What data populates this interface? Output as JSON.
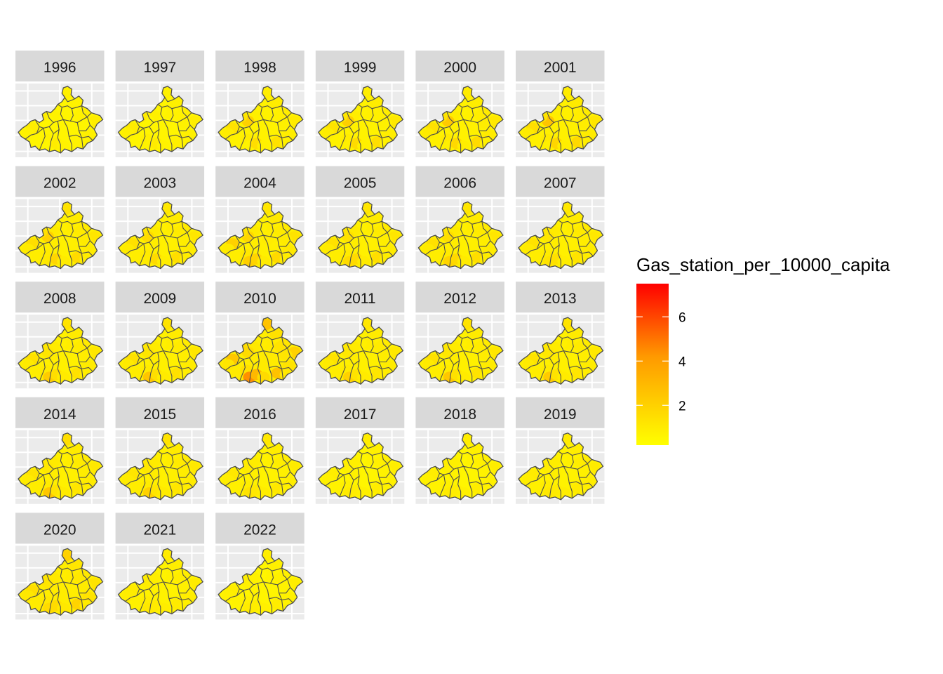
{
  "chart_data": {
    "type": "heatmap",
    "subtype": "faceted-choropleth",
    "facet_labels": [
      "1996",
      "1997",
      "1998",
      "1999",
      "2000",
      "2001",
      "2002",
      "2003",
      "2004",
      "2005",
      "2006",
      "2007",
      "2008",
      "2009",
      "2010",
      "2011",
      "2012",
      "2013",
      "2014",
      "2015",
      "2016",
      "2017",
      "2018",
      "2019",
      "2020",
      "2021",
      "2022"
    ],
    "facet_columns": 6,
    "region_count": 25,
    "facet_values": [
      [
        0.8,
        0.7,
        0.6,
        0.6,
        0.7,
        0.8,
        0.9,
        0.7,
        0.6,
        0.9,
        0.9,
        0.7,
        0.6,
        0.7,
        0.6,
        0.6,
        0.9,
        0.6,
        0.7,
        0.6,
        0.7,
        0.6,
        0.8,
        0.7,
        0.6
      ],
      [
        0.8,
        0.8,
        0.7,
        0.6,
        0.8,
        0.8,
        0.9,
        0.7,
        0.6,
        1.0,
        1.0,
        0.8,
        0.6,
        0.8,
        0.6,
        0.7,
        1.0,
        0.6,
        0.7,
        0.6,
        0.8,
        0.7,
        0.8,
        0.7,
        0.6
      ],
      [
        0.9,
        0.9,
        0.7,
        0.7,
        0.8,
        0.9,
        1.0,
        0.8,
        2.0,
        1.2,
        1.3,
        0.9,
        0.7,
        0.9,
        0.7,
        0.7,
        1.5,
        0.7,
        0.8,
        0.7,
        1.4,
        0.8,
        0.9,
        0.8,
        0.7
      ],
      [
        0.9,
        0.9,
        0.8,
        0.7,
        0.9,
        0.9,
        1.1,
        0.8,
        2.1,
        1.2,
        1.3,
        0.9,
        0.7,
        0.9,
        0.8,
        0.8,
        1.6,
        0.7,
        0.8,
        0.7,
        1.5,
        0.8,
        0.9,
        0.8,
        0.7
      ],
      [
        1.0,
        0.9,
        0.8,
        0.7,
        0.9,
        1.0,
        1.1,
        0.9,
        2.3,
        1.3,
        1.4,
        1.0,
        0.8,
        1.0,
        0.8,
        0.8,
        1.7,
        0.7,
        0.9,
        0.8,
        1.6,
        0.9,
        1.0,
        0.8,
        0.8
      ],
      [
        1.0,
        1.0,
        0.8,
        0.8,
        0.9,
        1.0,
        1.2,
        0.9,
        2.5,
        1.3,
        1.5,
        1.0,
        0.8,
        1.0,
        0.8,
        0.8,
        1.8,
        0.8,
        0.9,
        0.8,
        1.7,
        0.9,
        1.0,
        0.9,
        0.8
      ],
      [
        1.3,
        1.0,
        0.9,
        0.8,
        1.0,
        1.0,
        1.2,
        1.0,
        2.0,
        1.4,
        1.5,
        1.0,
        0.9,
        1.0,
        0.9,
        1.1,
        1.8,
        0.8,
        1.0,
        0.8,
        1.6,
        1.0,
        1.0,
        0.9,
        0.8
      ],
      [
        1.1,
        1.0,
        0.9,
        0.8,
        1.0,
        1.0,
        1.2,
        1.0,
        1.6,
        1.3,
        1.4,
        1.0,
        0.9,
        1.0,
        0.9,
        1.0,
        1.6,
        0.8,
        0.9,
        0.8,
        1.5,
        0.9,
        1.0,
        0.9,
        0.8
      ],
      [
        1.2,
        1.1,
        0.9,
        0.8,
        1.0,
        1.0,
        1.3,
        1.0,
        1.8,
        1.4,
        2.0,
        1.0,
        0.9,
        1.1,
        0.9,
        2.1,
        1.9,
        0.8,
        1.0,
        0.8,
        1.7,
        1.0,
        1.1,
        0.9,
        0.9
      ],
      [
        1.2,
        1.0,
        0.9,
        0.8,
        1.0,
        1.0,
        1.2,
        1.0,
        1.4,
        1.3,
        1.4,
        1.0,
        0.9,
        1.0,
        0.9,
        1.6,
        1.6,
        0.8,
        1.0,
        0.8,
        1.5,
        0.9,
        1.0,
        0.9,
        0.8
      ],
      [
        1.2,
        1.0,
        0.9,
        0.8,
        1.0,
        1.0,
        1.2,
        1.0,
        1.5,
        1.3,
        1.4,
        1.0,
        0.9,
        1.0,
        0.9,
        1.9,
        1.7,
        0.8,
        1.0,
        0.8,
        1.5,
        0.9,
        1.0,
        0.9,
        0.8
      ],
      [
        1.1,
        1.0,
        0.9,
        0.8,
        1.0,
        1.0,
        1.1,
        1.0,
        1.2,
        1.2,
        1.3,
        1.0,
        0.9,
        1.0,
        0.9,
        1.3,
        1.4,
        0.8,
        0.9,
        0.8,
        1.3,
        0.9,
        1.0,
        0.9,
        0.8
      ],
      [
        1.3,
        1.0,
        0.9,
        0.8,
        1.0,
        1.0,
        1.2,
        1.0,
        1.2,
        1.2,
        1.4,
        1.0,
        0.9,
        1.0,
        0.9,
        2.2,
        1.5,
        0.8,
        1.0,
        0.8,
        1.4,
        0.9,
        1.0,
        0.9,
        0.8
      ],
      [
        1.3,
        1.0,
        0.9,
        0.8,
        1.0,
        1.0,
        1.2,
        1.0,
        1.2,
        1.2,
        1.4,
        1.0,
        0.9,
        1.0,
        0.9,
        2.5,
        1.5,
        0.8,
        1.0,
        0.8,
        1.4,
        0.9,
        1.0,
        0.9,
        0.8
      ],
      [
        2.6,
        1.4,
        1.0,
        0.9,
        1.1,
        1.2,
        2.0,
        1.3,
        1.6,
        1.7,
        2.4,
        1.2,
        1.0,
        1.4,
        1.0,
        4.4,
        3.0,
        1.0,
        1.6,
        1.0,
        2.6,
        1.2,
        1.3,
        1.1,
        1.0
      ],
      [
        1.2,
        1.0,
        0.9,
        0.8,
        1.0,
        1.0,
        1.1,
        1.0,
        1.1,
        1.1,
        1.3,
        1.0,
        0.9,
        1.0,
        0.9,
        2.0,
        1.3,
        0.8,
        1.0,
        0.8,
        1.2,
        0.9,
        1.0,
        0.9,
        0.8
      ],
      [
        1.3,
        1.0,
        0.9,
        0.8,
        1.0,
        1.0,
        1.2,
        1.0,
        1.1,
        1.2,
        1.4,
        1.0,
        0.9,
        1.0,
        0.9,
        2.4,
        1.4,
        0.8,
        1.0,
        0.8,
        1.3,
        0.9,
        1.0,
        0.9,
        0.8
      ],
      [
        1.3,
        1.0,
        0.9,
        0.8,
        1.0,
        1.0,
        1.1,
        1.0,
        1.1,
        1.1,
        1.3,
        1.0,
        0.9,
        1.0,
        0.9,
        2.3,
        1.3,
        0.8,
        1.0,
        0.8,
        1.2,
        0.9,
        1.0,
        0.9,
        0.8
      ],
      [
        1.5,
        1.0,
        0.9,
        0.8,
        1.0,
        1.0,
        1.1,
        1.0,
        1.1,
        1.1,
        1.3,
        1.0,
        0.9,
        1.0,
        0.9,
        2.4,
        1.3,
        0.8,
        1.0,
        0.8,
        1.2,
        0.9,
        1.0,
        0.9,
        0.8
      ],
      [
        1.3,
        1.0,
        0.9,
        0.8,
        1.0,
        1.0,
        1.1,
        1.0,
        1.1,
        1.1,
        1.2,
        1.0,
        0.9,
        1.0,
        0.9,
        2.0,
        1.2,
        0.8,
        1.0,
        0.8,
        1.2,
        0.9,
        1.0,
        0.9,
        0.8
      ],
      [
        1.1,
        0.9,
        0.8,
        0.7,
        0.9,
        0.9,
        1.0,
        0.9,
        1.0,
        1.0,
        1.1,
        0.9,
        0.8,
        0.9,
        0.8,
        1.3,
        1.1,
        0.7,
        0.9,
        0.7,
        1.1,
        0.8,
        0.9,
        0.8,
        0.7
      ],
      [
        0.9,
        0.8,
        0.7,
        0.6,
        0.8,
        0.8,
        0.9,
        0.8,
        0.8,
        0.9,
        0.9,
        0.8,
        0.7,
        0.8,
        0.7,
        1.0,
        0.9,
        0.6,
        0.8,
        0.6,
        0.9,
        0.7,
        0.8,
        0.7,
        0.6
      ],
      [
        0.9,
        0.8,
        0.7,
        0.6,
        0.8,
        0.8,
        0.9,
        0.8,
        0.8,
        0.9,
        0.9,
        0.8,
        0.7,
        0.8,
        0.7,
        1.0,
        0.9,
        0.6,
        0.8,
        0.6,
        0.9,
        0.7,
        0.8,
        0.7,
        0.6
      ],
      [
        1.0,
        0.9,
        0.8,
        0.7,
        0.9,
        0.9,
        1.0,
        0.9,
        0.9,
        1.0,
        1.0,
        0.9,
        0.8,
        0.9,
        0.8,
        1.1,
        1.0,
        0.7,
        0.9,
        0.7,
        1.0,
        0.8,
        0.9,
        0.8,
        0.7
      ],
      [
        2.0,
        1.2,
        1.0,
        0.9,
        1.1,
        1.1,
        1.3,
        1.1,
        1.2,
        1.3,
        1.5,
        1.1,
        1.0,
        1.1,
        1.0,
        1.6,
        1.6,
        0.9,
        1.1,
        0.9,
        1.9,
        1.0,
        1.3,
        1.0,
        0.9
      ],
      [
        1.0,
        0.9,
        0.8,
        0.7,
        0.9,
        0.9,
        1.0,
        0.9,
        0.9,
        1.0,
        1.0,
        0.9,
        0.8,
        0.9,
        0.8,
        1.1,
        1.0,
        0.7,
        0.9,
        0.7,
        1.0,
        0.8,
        0.9,
        0.8,
        0.7
      ],
      [
        0.9,
        0.8,
        0.7,
        0.6,
        0.8,
        0.8,
        0.9,
        0.8,
        0.8,
        0.9,
        0.9,
        0.8,
        0.7,
        0.8,
        0.7,
        1.0,
        0.9,
        0.6,
        0.8,
        0.6,
        0.9,
        0.7,
        0.8,
        0.7,
        0.6
      ]
    ],
    "legend": {
      "title": "Gas_station_per_10000_capita",
      "ticks": [
        2,
        4,
        6
      ],
      "range": [
        0.2,
        7.5
      ],
      "low_color": "#FFFF00",
      "high_color": "#FF0000",
      "placement": "right"
    },
    "grid": true
  },
  "colors": {
    "panel_background": "#EBEBEB",
    "strip_background": "#D9D9D9",
    "grid_line": "#FFFFFF",
    "region_border": "#4D4D4D"
  }
}
